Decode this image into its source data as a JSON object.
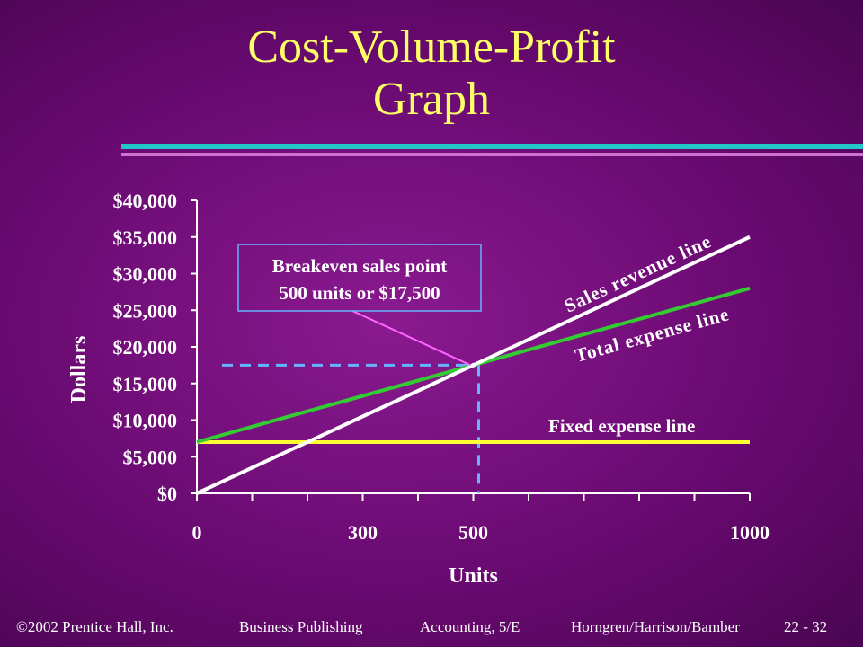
{
  "slide": {
    "title_line1": "Cost-Volume-Profit",
    "title_line2": "Graph"
  },
  "colors": {
    "title": "#ffff66",
    "accent_bar": "#22c8c8",
    "accent_bar2": "#d070d0",
    "revenue": "#ffffff",
    "total_expense": "#33cc33",
    "fixed_expense": "#ffff33",
    "breakeven_guide": "#66b3ff",
    "callout_pointer": "#ff66ff"
  },
  "chart_data": {
    "type": "line",
    "xlabel": "Units",
    "ylabel": "Dollars",
    "xlim": [
      0,
      1000
    ],
    "ylim": [
      0,
      40000
    ],
    "x_ticks": [
      0,
      100,
      200,
      300,
      400,
      500,
      600,
      700,
      800,
      900,
      1000
    ],
    "x_tick_labels": [
      {
        "value": 0,
        "label": "0"
      },
      {
        "value": 300,
        "label": "300"
      },
      {
        "value": 500,
        "label": "500"
      },
      {
        "value": 1000,
        "label": "1000"
      }
    ],
    "y_ticks": [
      {
        "value": 0,
        "label": "$0"
      },
      {
        "value": 5000,
        "label": "$5,000"
      },
      {
        "value": 10000,
        "label": "$10,000"
      },
      {
        "value": 15000,
        "label": "$15,000"
      },
      {
        "value": 20000,
        "label": "$20,000"
      },
      {
        "value": 25000,
        "label": "$25,000"
      },
      {
        "value": 30000,
        "label": "$30,000"
      },
      {
        "value": 35000,
        "label": "$35,000"
      },
      {
        "value": 40000,
        "label": "$40,000"
      }
    ],
    "series": [
      {
        "name": "Sales revenue line",
        "x": [
          0,
          1000
        ],
        "y": [
          0,
          35000
        ]
      },
      {
        "name": "Total expense line",
        "x": [
          0,
          1000
        ],
        "y": [
          7000,
          28000
        ]
      },
      {
        "name": "Fixed expense line",
        "x": [
          0,
          1000
        ],
        "y": [
          7000,
          7000
        ]
      }
    ],
    "breakeven": {
      "x": 500,
      "y": 17500,
      "label_line1": "Breakeven sales point",
      "label_line2": "500 units or $17,500"
    },
    "grid": false,
    "legend": "none"
  },
  "footer": {
    "copyright": "©2002 Prentice Hall, Inc.",
    "publisher": "Business Publishing",
    "book": "Accounting, 5/E",
    "authors": "Horngren/Harrison/Bamber",
    "page": "22 - 32"
  }
}
